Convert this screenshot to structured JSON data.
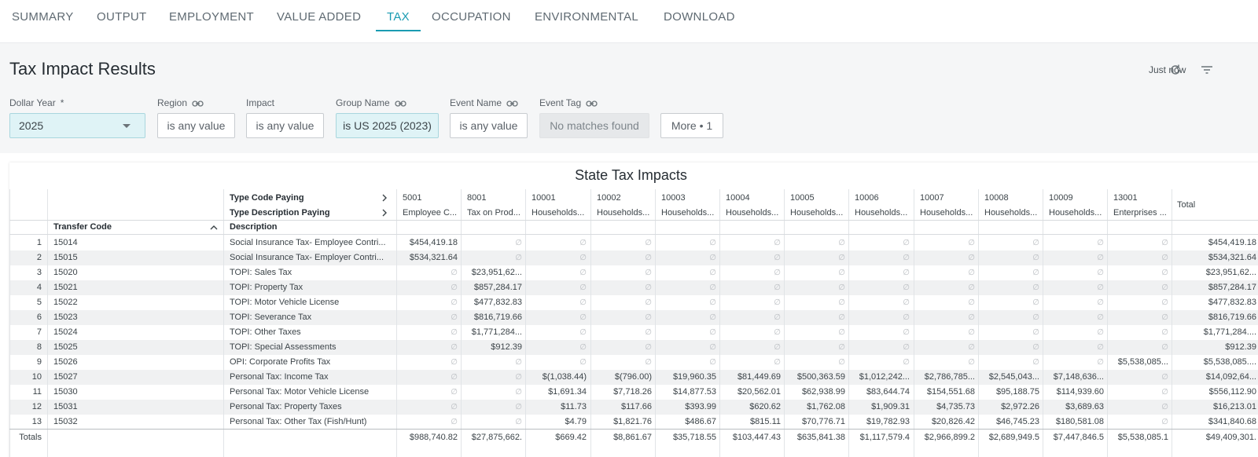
{
  "tabs": [
    "SUMMARY",
    "OUTPUT",
    "EMPLOYMENT",
    "VALUE ADDED",
    "TAX",
    "OCCUPATION",
    "ENVIRONMENTAL",
    "DOWNLOAD"
  ],
  "active_tab": "TAX",
  "page_title": "Tax Impact Results",
  "timestamp": "Just now",
  "filters": {
    "dollar_year": {
      "label": "Dollar Year",
      "required_mark": "*",
      "value": "2025"
    },
    "region": {
      "label": "Region",
      "value": "is any value"
    },
    "impact": {
      "label": "Impact",
      "value": "is any value"
    },
    "group_name": {
      "label": "Group Name",
      "value": "is US 2025 (2023)"
    },
    "event_name": {
      "label": "Event Name",
      "value": "is any value"
    },
    "event_tag": {
      "label": "Event Tag",
      "value": "No matches found"
    },
    "more": "More • 1"
  },
  "table": {
    "title": "State Tax Impacts",
    "pivot_labels": {
      "type_code": "Type Code Paying",
      "type_desc": "Type Description Paying"
    },
    "col_transfer_code": "Transfer Code",
    "col_description": "Description",
    "columns": [
      {
        "code": "5001",
        "desc": "Employee C..."
      },
      {
        "code": "8001",
        "desc": "Tax on Prod..."
      },
      {
        "code": "10001",
        "desc": "Households..."
      },
      {
        "code": "10002",
        "desc": "Households..."
      },
      {
        "code": "10003",
        "desc": "Households..."
      },
      {
        "code": "10004",
        "desc": "Households..."
      },
      {
        "code": "10005",
        "desc": "Households..."
      },
      {
        "code": "10006",
        "desc": "Households..."
      },
      {
        "code": "10007",
        "desc": "Households..."
      },
      {
        "code": "10008",
        "desc": "Households..."
      },
      {
        "code": "10009",
        "desc": "Households..."
      },
      {
        "code": "13001",
        "desc": "Enterprises ..."
      }
    ],
    "total_label": "Total",
    "empty_symbol": "∅",
    "rows": [
      {
        "n": "1",
        "code": "15014",
        "desc": "Social Insurance Tax- Employee Contri...",
        "vals": [
          "$454,419.18",
          "",
          "",
          "",
          "",
          "",
          "",
          "",
          "",
          "",
          "",
          ""
        ],
        "total": "$454,419.18"
      },
      {
        "n": "2",
        "code": "15015",
        "desc": "Social Insurance Tax- Employer Contri...",
        "vals": [
          "$534,321.64",
          "",
          "",
          "",
          "",
          "",
          "",
          "",
          "",
          "",
          "",
          ""
        ],
        "total": "$534,321.64"
      },
      {
        "n": "3",
        "code": "15020",
        "desc": "TOPI: Sales Tax",
        "vals": [
          "",
          "$23,951,62...",
          "",
          "",
          "",
          "",
          "",
          "",
          "",
          "",
          "",
          ""
        ],
        "total": "$23,951,62..."
      },
      {
        "n": "4",
        "code": "15021",
        "desc": "TOPI: Property Tax",
        "vals": [
          "",
          "$857,284.17",
          "",
          "",
          "",
          "",
          "",
          "",
          "",
          "",
          "",
          ""
        ],
        "total": "$857,284.17"
      },
      {
        "n": "5",
        "code": "15022",
        "desc": "TOPI: Motor Vehicle License",
        "vals": [
          "",
          "$477,832.83",
          "",
          "",
          "",
          "",
          "",
          "",
          "",
          "",
          "",
          ""
        ],
        "total": "$477,832.83"
      },
      {
        "n": "6",
        "code": "15023",
        "desc": "TOPI: Severance Tax",
        "vals": [
          "",
          "$816,719.66",
          "",
          "",
          "",
          "",
          "",
          "",
          "",
          "",
          "",
          ""
        ],
        "total": "$816,719.66"
      },
      {
        "n": "7",
        "code": "15024",
        "desc": "TOPI: Other Taxes",
        "vals": [
          "",
          "$1,771,284...",
          "",
          "",
          "",
          "",
          "",
          "",
          "",
          "",
          "",
          ""
        ],
        "total": "$1,771,284...."
      },
      {
        "n": "8",
        "code": "15025",
        "desc": "TOPI: Special Assessments",
        "vals": [
          "",
          "$912.39",
          "",
          "",
          "",
          "",
          "",
          "",
          "",
          "",
          "",
          ""
        ],
        "total": "$912.39"
      },
      {
        "n": "9",
        "code": "15026",
        "desc": "OPI: Corporate Profits Tax",
        "vals": [
          "",
          "",
          "",
          "",
          "",
          "",
          "",
          "",
          "",
          "",
          "",
          "$5,538,085..."
        ],
        "total": "$5,538,085...."
      },
      {
        "n": "10",
        "code": "15027",
        "desc": "Personal Tax: Income Tax",
        "vals": [
          "",
          "",
          "$(1,038.44)",
          "$(796.00)",
          "$19,960.35",
          "$81,449.69",
          "$500,363.59",
          "$1,012,242...",
          "$2,786,785...",
          "$2,545,043...",
          "$7,148,636...",
          ""
        ],
        "total": "$14,092,64..."
      },
      {
        "n": "11",
        "code": "15030",
        "desc": "Personal Tax: Motor Vehicle License",
        "vals": [
          "",
          "",
          "$1,691.34",
          "$7,718.26",
          "$14,877.53",
          "$20,562.01",
          "$62,938.99",
          "$83,644.74",
          "$154,551.68",
          "$95,188.75",
          "$114,939.60",
          ""
        ],
        "total": "$556,112.90"
      },
      {
        "n": "12",
        "code": "15031",
        "desc": "Personal Tax: Property Taxes",
        "vals": [
          "",
          "",
          "$11.73",
          "$117.66",
          "$393.99",
          "$620.62",
          "$1,762.08",
          "$1,909.31",
          "$4,735.73",
          "$2,972.26",
          "$3,689.63",
          ""
        ],
        "total": "$16,213.01"
      },
      {
        "n": "13",
        "code": "15032",
        "desc": "Personal Tax: Other Tax (Fish/Hunt)",
        "vals": [
          "",
          "",
          "$4.79",
          "$1,821.76",
          "$486.67",
          "$815.11",
          "$70,776.71",
          "$19,782.93",
          "$20,826.42",
          "$46,745.23",
          "$180,581.08",
          ""
        ],
        "total": "$341,840.68"
      }
    ],
    "totals_label": "Totals",
    "totals": [
      "$988,740.82",
      "$27,875,662.",
      "$669.42",
      "$8,861.67",
      "$35,718.55",
      "$103,447.43",
      "$635,841.38",
      "$1,117,579.4",
      "$2,966,899.2",
      "$2,689,949.5",
      "$7,447,846.5",
      "$5,538,085.1"
    ],
    "grand_total": "$49,409,301."
  }
}
